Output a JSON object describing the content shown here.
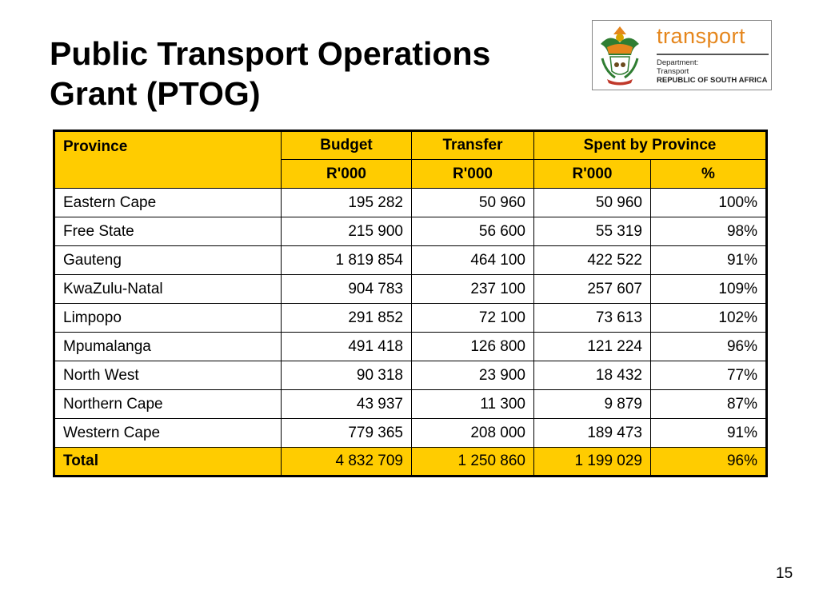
{
  "title": {
    "line1": "Public Transport Operations",
    "line2": "Grant (PTOG)"
  },
  "logo": {
    "word": "transport",
    "line1": "Department:",
    "line2": "Transport",
    "line3": "REPUBLIC OF SOUTH AFRICA",
    "accent_color": "#e5861c"
  },
  "table": {
    "header_color": "#ffcc00",
    "headers": {
      "province": "Province",
      "budget": "Budget",
      "transfer": "Transfer",
      "spent": "Spent by Province",
      "budget_unit": "R'000",
      "transfer_unit": "R'000",
      "spent_unit": "R'000",
      "spent_pct": "%"
    },
    "rows": [
      {
        "province": "Eastern Cape",
        "budget": "195 282",
        "transfer": "50 960",
        "spent": "50 960",
        "pct": "100%"
      },
      {
        "province": "Free State",
        "budget": "215 900",
        "transfer": "56 600",
        "spent": "55 319",
        "pct": "98%"
      },
      {
        "province": "Gauteng",
        "budget": "1 819 854",
        "transfer": "464 100",
        "spent": "422 522",
        "pct": "91%"
      },
      {
        "province": "KwaZulu-Natal",
        "budget": "904 783",
        "transfer": "237 100",
        "spent": "257 607",
        "pct": "109%"
      },
      {
        "province": "Limpopo",
        "budget": "291 852",
        "transfer": "72 100",
        "spent": "73 613",
        "pct": "102%"
      },
      {
        "province": "Mpumalanga",
        "budget": "491 418",
        "transfer": "126 800",
        "spent": "121 224",
        "pct": "96%"
      },
      {
        "province": "North West",
        "budget": "90 318",
        "transfer": "23 900",
        "spent": "18 432",
        "pct": "77%"
      },
      {
        "province": "Northern Cape",
        "budget": "43 937",
        "transfer": "11 300",
        "spent": "9 879",
        "pct": "87%"
      },
      {
        "province": "Western Cape",
        "budget": "779 365",
        "transfer": "208 000",
        "spent": "189 473",
        "pct": "91%"
      }
    ],
    "total": {
      "province": "Total",
      "budget": "4 832 709",
      "transfer": "1 250 860",
      "spent": "1 199 029",
      "pct": "96%"
    }
  },
  "page_number": "15"
}
